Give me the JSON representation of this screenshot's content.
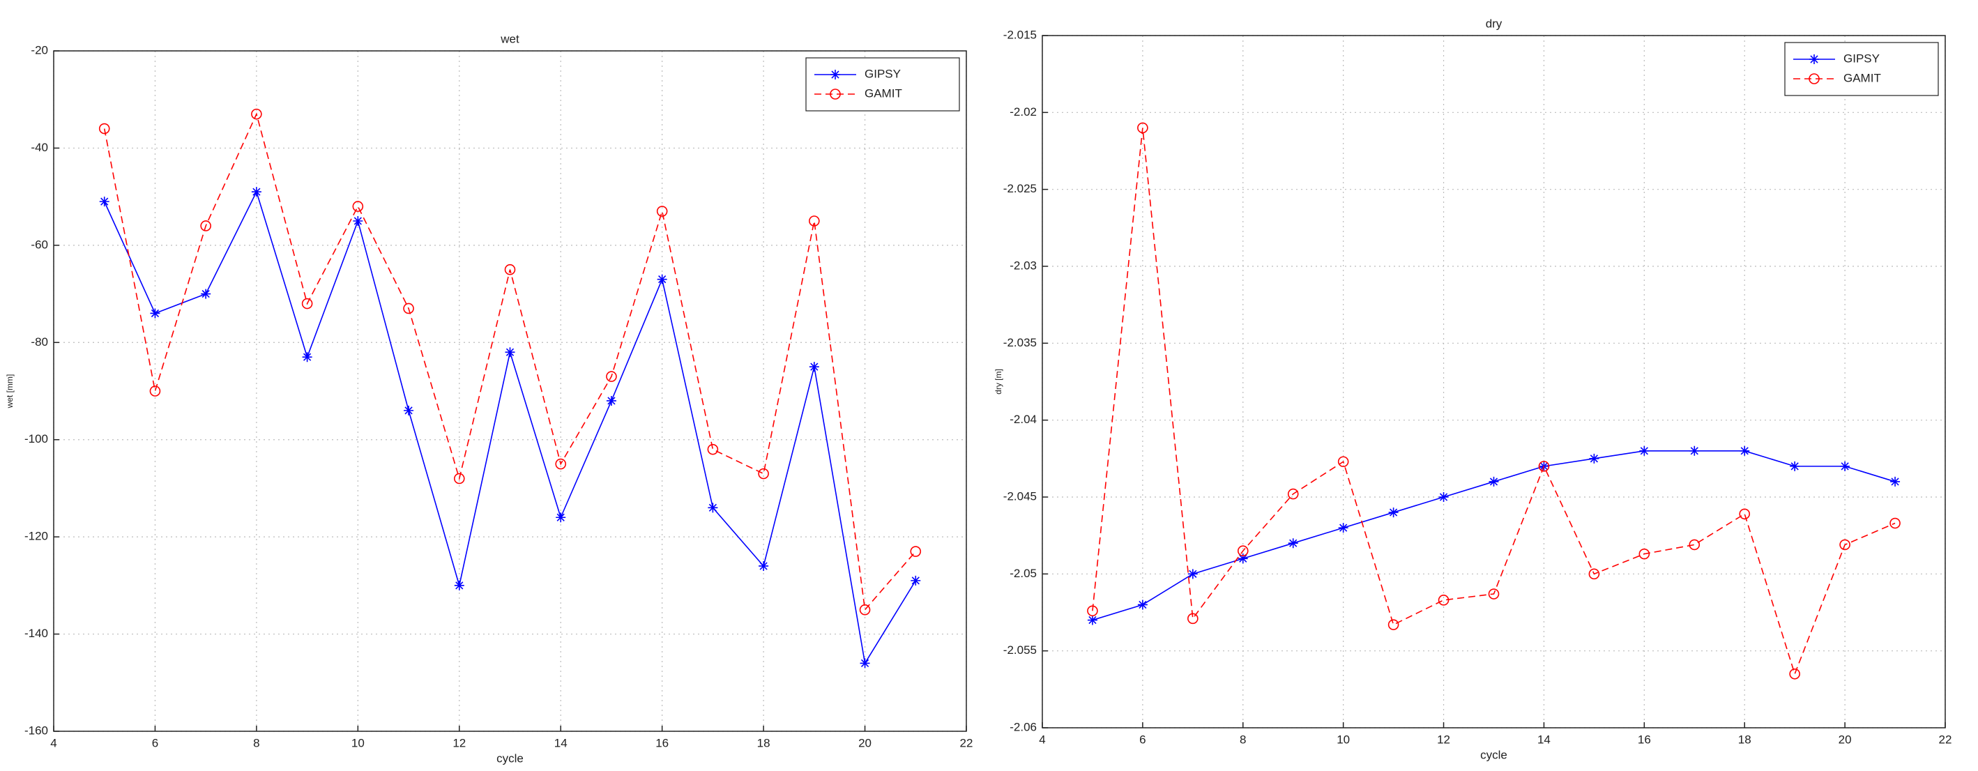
{
  "chart_data": [
    {
      "type": "line",
      "title": "wet",
      "xlabel": "cycle",
      "ylabel": "wet [mm]",
      "x": [
        5,
        6,
        7,
        8,
        9,
        10,
        11,
        12,
        13,
        14,
        15,
        16,
        17,
        18,
        19,
        20,
        21
      ],
      "xlim": [
        4,
        22
      ],
      "xticks": [
        4,
        6,
        8,
        10,
        12,
        14,
        16,
        18,
        20,
        22
      ],
      "ylim": [
        -160,
        -20
      ],
      "yticks": [
        -160,
        -140,
        -120,
        -100,
        -80,
        -60,
        -40,
        -20
      ],
      "grid": true,
      "legend": "upper right",
      "series": [
        {
          "name": "GIPSY",
          "color": "#0000ff",
          "linestyle": "solid",
          "marker": "*",
          "values": [
            -51,
            -74,
            -70,
            -49,
            -83,
            -55,
            -94,
            -130,
            -82,
            -116,
            -92,
            -67,
            -114,
            -126,
            -85,
            -146,
            -129
          ]
        },
        {
          "name": "GAMIT",
          "color": "#ff0000",
          "linestyle": "dashed",
          "marker": "o",
          "values": [
            -36,
            -90,
            -56,
            -33,
            -72,
            -52,
            -73,
            -108,
            -65,
            -105,
            -87,
            -53,
            -102,
            -107,
            -55,
            -135,
            -123
          ]
        }
      ]
    },
    {
      "type": "line",
      "title": "dry",
      "xlabel": "cycle",
      "ylabel": "dry [m]",
      "x": [
        5,
        6,
        7,
        8,
        9,
        10,
        11,
        12,
        13,
        14,
        15,
        16,
        17,
        18,
        19,
        20,
        21
      ],
      "xlim": [
        4,
        22
      ],
      "xticks": [
        4,
        6,
        8,
        10,
        12,
        14,
        16,
        18,
        20,
        22
      ],
      "ylim": [
        -2.06,
        -2.015
      ],
      "yticks": [
        -2.06,
        -2.055,
        -2.05,
        -2.045,
        -2.04,
        -2.035,
        -2.03,
        -2.025,
        -2.02,
        -2.015
      ],
      "grid": true,
      "legend": "upper right",
      "series": [
        {
          "name": "GIPSY",
          "color": "#0000ff",
          "linestyle": "solid",
          "marker": "*",
          "values": [
            -2.053,
            -2.052,
            -2.05,
            -2.049,
            -2.048,
            -2.047,
            -2.046,
            -2.045,
            -2.044,
            -2.043,
            -2.0425,
            -2.042,
            -2.042,
            -2.042,
            -2.043,
            -2.043,
            -2.044
          ]
        },
        {
          "name": "GAMIT",
          "color": "#ff0000",
          "linestyle": "dashed",
          "marker": "o",
          "values": [
            -2.0524,
            -2.021,
            -2.0529,
            -2.0485,
            -2.0448,
            -2.0427,
            -2.0533,
            -2.0517,
            -2.0513,
            -2.043,
            -2.05,
            -2.0487,
            -2.0481,
            -2.0461,
            -2.0565,
            -2.0481,
            -2.0467
          ]
        }
      ]
    }
  ]
}
